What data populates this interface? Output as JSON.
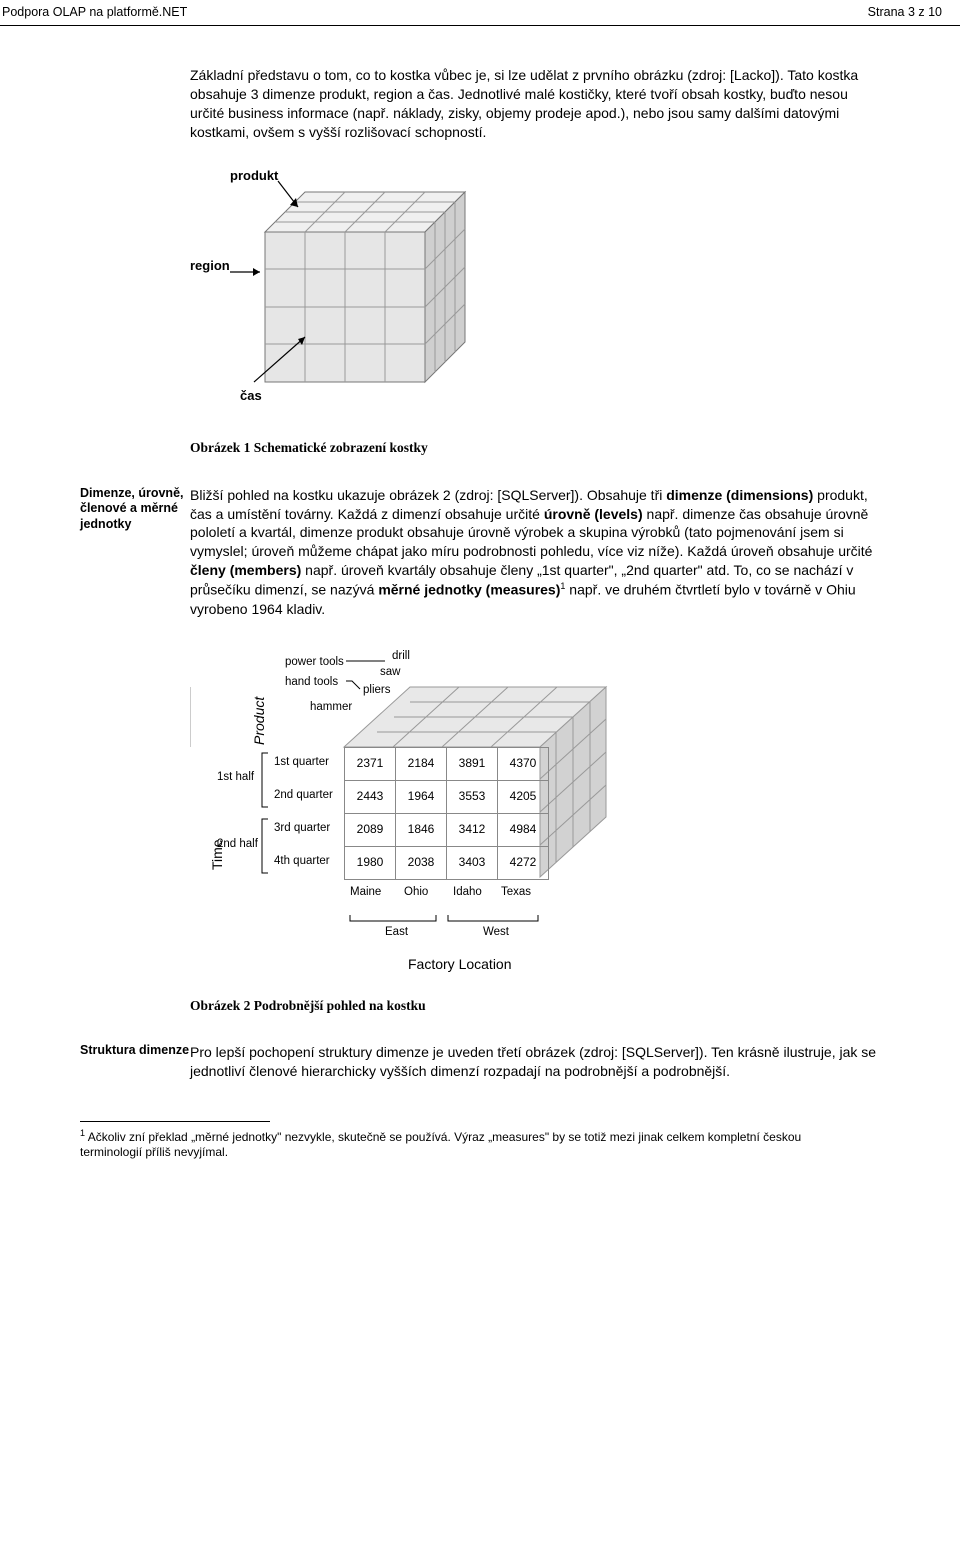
{
  "header": {
    "left": "Podpora OLAP na platformě.NET",
    "right": "Strana 3 z 10"
  },
  "para1_html": "Základní představu o tom, co to kostka vůbec je, si lze udělat z prvního obrázku (zdroj: [Lacko]). Tato kostka obsahuje 3 dimenze produkt, region a čas. Jednotlivé malé kostičky, které tvoří obsah kostky, buďto nesou určité business informace (např. náklady, zisky, objemy prodeje apod.), nebo jsou samy dalšími datovými kostkami, ovšem s vyšší rozlišovací schopností.",
  "fig1": {
    "caption": "Obrázek 1 Schematické zobrazení kostky",
    "label_produkt": "produkt",
    "label_region": "region",
    "label_cas": "čas",
    "colors": {
      "light": "#f4f4f4",
      "mid": "#d8d8d8",
      "dark": "#bcbcbc",
      "edge": "#777777"
    }
  },
  "section2": {
    "side_label": "Dimenze, úrovně, členové a měrné jednotky",
    "body_html": "Bližší pohled na kostku ukazuje obrázek 2 (zdroj: [SQLServer]). Obsahuje tři <b>dimenze (dimensions)</b> produkt, čas a umístění továrny. Každá z dimenzí obsahuje určité <b>úrovně (levels)</b> např. dimenze čas obsahuje úrovně pololetí a kvartál, dimenze produkt obsahuje úrovně výrobek a skupina výrobků (tato pojmenování jsem si vymyslel; úroveň můžeme chápat jako míru podrobnosti pohledu, více viz níže). Každá úroveň obsahuje určité <b>členy (members)</b> např. úroveň kvartály obsahuje členy „1st quarter\", „2nd quarter\" atd. To, co se nachází v průsečíku dimenzí, se nazývá <b>měrné jednotky (measures)</b><sup>1</sup> např. ve druhém čtvrtletí bylo v továrně v Ohiu vyrobeno 1964 kladiv."
  },
  "fig2": {
    "caption": "Obrázek 2 Podrobnější pohled na kostku",
    "axis_product": "Product",
    "axis_time": "Time",
    "axis_factory": "Factory Location",
    "prod_group1": "power tools",
    "prod_group2": "hand tools",
    "prod_items": [
      "drill",
      "saw",
      "pliers",
      "hammer"
    ],
    "time_half": [
      "1st half",
      "2nd half"
    ],
    "time_q": [
      "1st quarter",
      "2nd quarter",
      "3rd quarter",
      "4th quarter"
    ],
    "loc_groups": [
      "East",
      "West"
    ],
    "loc_cols": [
      "Maine",
      "Ohio",
      "Idaho",
      "Texas"
    ],
    "table": [
      [
        2371,
        2184,
        3891,
        4370
      ],
      [
        2443,
        1964,
        3553,
        4205
      ],
      [
        2089,
        1846,
        3412,
        4984
      ],
      [
        1980,
        2038,
        3403,
        4272
      ]
    ],
    "colors": {
      "cell_border": "#888888",
      "cube_edge": "#999999",
      "cube_top": "#e8e8e8",
      "cube_side": "#cccccc"
    }
  },
  "section3": {
    "side_label": "Struktura dimenze",
    "body_html": "Pro lepší pochopení struktury dimenze je uveden třetí obrázek (zdroj: [SQLServer]). Ten krásně ilustruje, jak se jednotliví členové hierarchicky vyšších dimenzí rozpadají na podrobnější a podrobnější."
  },
  "footnote": {
    "marker": "1",
    "text": "Ačkoliv zní překlad „měrné jednotky\" nezvykle, skutečně se používá. Výraz „measures\" by se totiž mezi jinak celkem kompletní českou terminologií příliš nevyjímal."
  }
}
